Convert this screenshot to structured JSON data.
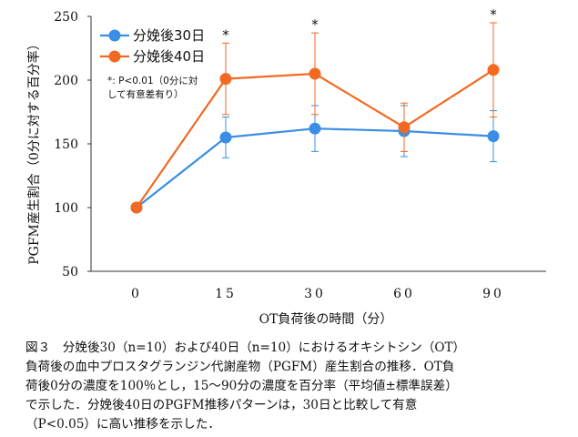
{
  "chart_data": {
    "type": "line",
    "categories": [
      "0",
      "15",
      "30",
      "60",
      "90"
    ],
    "ylabel": "PGFM産生割合（0分に対する百分率）",
    "xlabel": "OT負荷後の時間（分）",
    "ylim": [
      50,
      250
    ],
    "yticks": [
      50,
      100,
      150,
      200,
      250
    ],
    "grid": false,
    "legend_position": "top-left",
    "series": [
      {
        "name": "分娩後30日",
        "color": "#3B8EE5",
        "values": [
          100,
          155,
          162,
          160,
          156
        ],
        "err": [
          0,
          16,
          18,
          20,
          20
        ]
      },
      {
        "name": "分娩後40日",
        "color": "#F26A21",
        "values": [
          100,
          201,
          205,
          163,
          208
        ],
        "err": [
          0,
          28,
          32,
          19,
          37
        ]
      }
    ],
    "significance": [
      {
        "category": "15",
        "label": "*"
      },
      {
        "category": "30",
        "label": "*"
      },
      {
        "category": "90",
        "label": "*"
      }
    ],
    "note_lines": [
      "*: P<0.01（0分に対",
      "して有意差有り）"
    ]
  },
  "caption": {
    "lines": [
      "図３　分娩後30（n=10）および40日（n=10）におけるオキシトシン（OT）",
      "負荷後の血中プロスタグランジン代謝産物（PGFM）産生割合の推移．OT負",
      "荷後0分の濃度を100％とし，15～90分の濃度を百分率（平均値±標準誤差）",
      "で示した．分娩後40日のPGFM推移パターンは，30日と比較して有意",
      "（P<0.05）に高い推移を示した．"
    ]
  }
}
